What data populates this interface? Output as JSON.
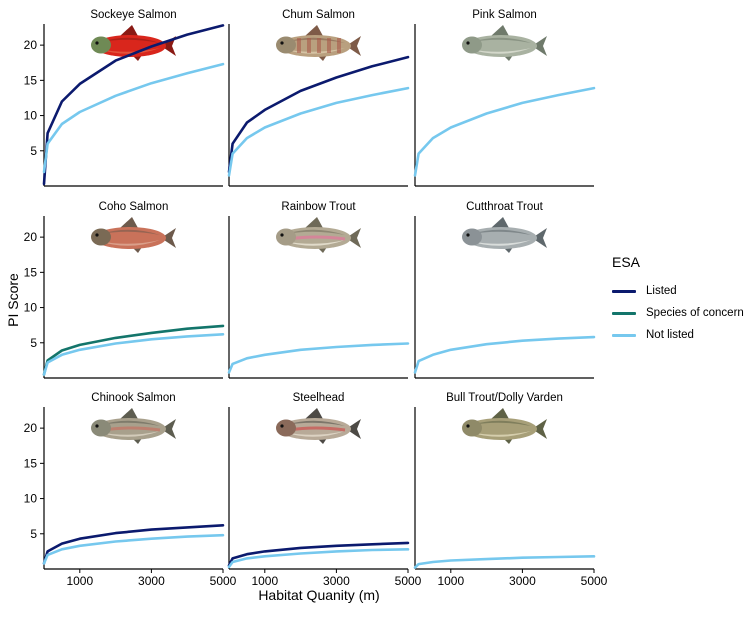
{
  "colors": {
    "Listed": "#0b1a6e",
    "Species of concern": "#13756b",
    "Not listed": "#76c8ee"
  },
  "legend": {
    "title": "ESA",
    "items": [
      "Listed",
      "Species of concern",
      "Not listed"
    ]
  },
  "chart_data": {
    "type": "line",
    "ylabel": "PI Score",
    "xlabel": "Habitat Quanity (m)",
    "xlim": [
      0,
      5000
    ],
    "ylim": [
      0,
      23
    ],
    "xticks": [
      1000,
      3000,
      5000
    ],
    "xtick_labels": [
      "1000",
      "3000",
      "5000"
    ],
    "yticks": [
      5,
      10,
      15,
      20
    ],
    "ytick_labels": [
      "5",
      "10",
      "15",
      "20"
    ],
    "grid": false,
    "legend_position": "right",
    "panels": [
      {
        "title": "Sockeye Salmon",
        "fish_icon": "sockeye-salmon-icon",
        "series": [
          {
            "name": "Listed",
            "x": [
              1,
              100,
              500,
              1000,
              2000,
              3000,
              4000,
              5000
            ],
            "y": [
              0.3,
              7.5,
              12.0,
              14.5,
              17.8,
              19.8,
              21.5,
              22.8
            ]
          },
          {
            "name": "Not listed",
            "x": [
              1,
              100,
              500,
              1000,
              2000,
              3000,
              4000,
              5000
            ],
            "y": [
              2.0,
              6.0,
              8.8,
              10.5,
              12.8,
              14.6,
              16.0,
              17.3
            ]
          }
        ]
      },
      {
        "title": "Chum Salmon",
        "fish_icon": "chum-salmon-icon",
        "series": [
          {
            "name": "Listed",
            "x": [
              1,
              100,
              500,
              1000,
              2000,
              3000,
              4000,
              5000
            ],
            "y": [
              2.0,
              6.0,
              9.0,
              10.8,
              13.5,
              15.4,
              17.0,
              18.3
            ]
          },
          {
            "name": "Not listed",
            "x": [
              1,
              100,
              500,
              1000,
              2000,
              3000,
              4000,
              5000
            ],
            "y": [
              1.5,
              4.6,
              6.8,
              8.3,
              10.3,
              11.8,
              12.9,
              13.9
            ]
          }
        ]
      },
      {
        "title": "Pink Salmon",
        "fish_icon": "pink-salmon-icon",
        "series": [
          {
            "name": "Not listed",
            "x": [
              1,
              100,
              500,
              1000,
              2000,
              3000,
              4000,
              5000
            ],
            "y": [
              1.5,
              4.6,
              6.8,
              8.3,
              10.3,
              11.8,
              12.9,
              13.9
            ]
          }
        ]
      },
      {
        "title": "Coho Salmon",
        "fish_icon": "coho-salmon-icon",
        "series": [
          {
            "name": "Species of concern",
            "x": [
              1,
              100,
              500,
              1000,
              2000,
              3000,
              4000,
              5000
            ],
            "y": [
              0.5,
              2.5,
              3.9,
              4.7,
              5.7,
              6.4,
              7.0,
              7.4
            ]
          },
          {
            "name": "Not listed",
            "x": [
              1,
              100,
              500,
              1000,
              2000,
              3000,
              4000,
              5000
            ],
            "y": [
              0.5,
              2.2,
              3.3,
              4.0,
              4.9,
              5.5,
              5.9,
              6.2
            ]
          }
        ]
      },
      {
        "title": "Rainbow Trout",
        "fish_icon": "rainbow-trout-icon",
        "series": [
          {
            "name": "Not listed",
            "x": [
              1,
              100,
              500,
              1000,
              2000,
              3000,
              4000,
              5000
            ],
            "y": [
              0.8,
              2.0,
              2.8,
              3.3,
              4.0,
              4.4,
              4.7,
              4.9
            ]
          }
        ]
      },
      {
        "title": "Cutthroat Trout",
        "fish_icon": "cutthroat-trout-icon",
        "series": [
          {
            "name": "Not listed",
            "x": [
              1,
              100,
              500,
              1000,
              2000,
              3000,
              4000,
              5000
            ],
            "y": [
              0.8,
              2.4,
              3.3,
              4.0,
              4.8,
              5.3,
              5.6,
              5.8
            ]
          }
        ]
      },
      {
        "title": "Chinook Salmon",
        "fish_icon": "chinook-salmon-icon",
        "series": [
          {
            "name": "Listed",
            "x": [
              1,
              100,
              500,
              1000,
              2000,
              3000,
              4000,
              5000
            ],
            "y": [
              0.8,
              2.5,
              3.6,
              4.3,
              5.1,
              5.6,
              5.9,
              6.2
            ]
          },
          {
            "name": "Not listed",
            "x": [
              1,
              100,
              500,
              1000,
              2000,
              3000,
              4000,
              5000
            ],
            "y": [
              0.8,
              2.0,
              2.8,
              3.3,
              3.9,
              4.3,
              4.6,
              4.8
            ]
          }
        ]
      },
      {
        "title": "Steelhead",
        "fish_icon": "steelhead-icon",
        "series": [
          {
            "name": "Listed",
            "x": [
              1,
              100,
              500,
              1000,
              2000,
              3000,
              4000,
              5000
            ],
            "y": [
              0.5,
              1.5,
              2.1,
              2.5,
              3.0,
              3.3,
              3.5,
              3.7
            ]
          },
          {
            "name": "Not listed",
            "x": [
              1,
              100,
              500,
              1000,
              2000,
              3000,
              4000,
              5000
            ],
            "y": [
              0.3,
              1.0,
              1.5,
              1.8,
              2.2,
              2.5,
              2.7,
              2.8
            ]
          }
        ]
      },
      {
        "title": "Bull Trout/Dolly Varden",
        "fish_icon": "bull-trout-icon",
        "series": [
          {
            "name": "Not listed",
            "x": [
              1,
              100,
              500,
              1000,
              2000,
              3000,
              4000,
              5000
            ],
            "y": [
              0.2,
              0.7,
              1.0,
              1.2,
              1.4,
              1.6,
              1.7,
              1.8
            ]
          }
        ]
      }
    ]
  }
}
